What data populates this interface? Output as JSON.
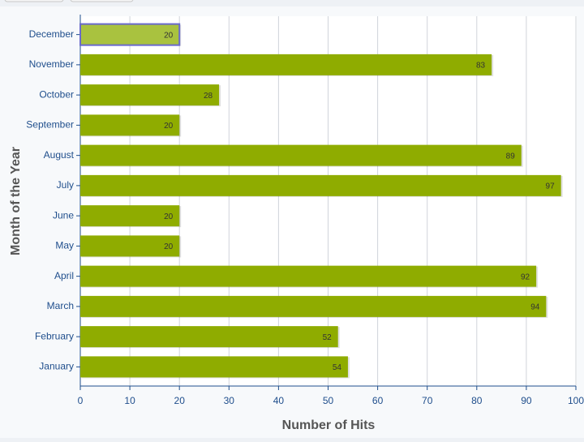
{
  "chart_data": {
    "type": "hbar",
    "x_label": "Number of Hits",
    "y_label": "Month of the Year",
    "categories": [
      "January",
      "February",
      "March",
      "April",
      "May",
      "June",
      "July",
      "August",
      "September",
      "October",
      "November",
      "December"
    ],
    "values": [
      54,
      52,
      94,
      92,
      20,
      20,
      97,
      89,
      20,
      28,
      83,
      20
    ],
    "color": "#8fac00",
    "xlim": [
      0,
      100
    ],
    "xticks": [
      0,
      10,
      20,
      30,
      40,
      50,
      60,
      70,
      80,
      90,
      100
    ],
    "grid": true,
    "data_labels": true
  }
}
